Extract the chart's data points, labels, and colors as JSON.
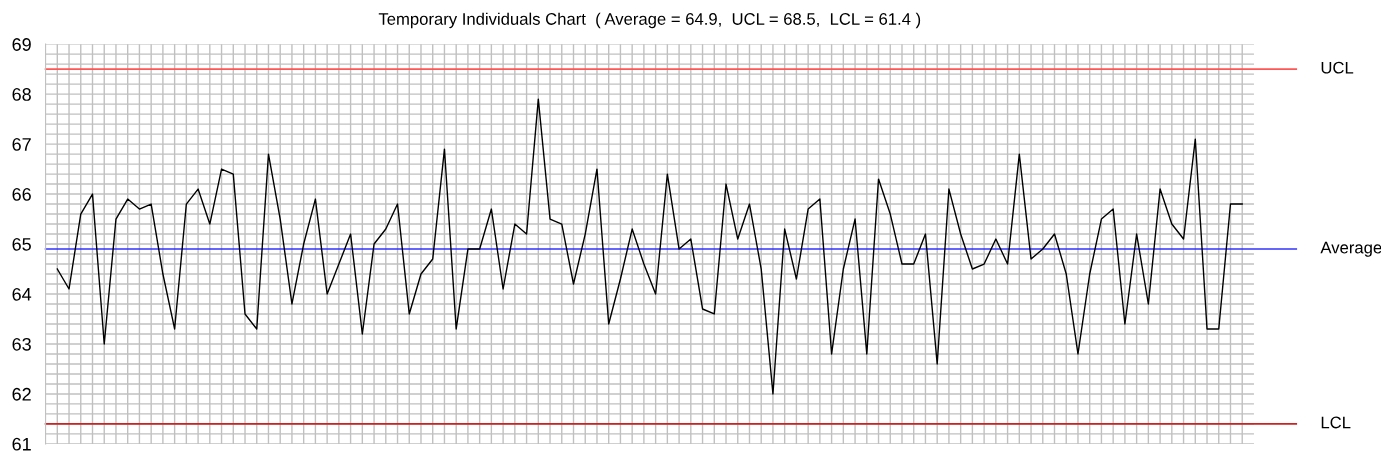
{
  "chart_data": {
    "type": "line",
    "title": "Temporary Individuals Chart  ( Average = 64.9,  UCL = 68.5,  LCL = 61.4 )",
    "categories": [
      null,
      null,
      null,
      null,
      null,
      null,
      null,
      null,
      null,
      null,
      null,
      null,
      null,
      null,
      null,
      null,
      null,
      null,
      null,
      null,
      null,
      null,
      null,
      null,
      null,
      null,
      null,
      null,
      null,
      null,
      null,
      null,
      null,
      null,
      null,
      null,
      null,
      null,
      null,
      null,
      null,
      null,
      null,
      null,
      null,
      null,
      null,
      null,
      null,
      null,
      null,
      null,
      null,
      null,
      null,
      null,
      null,
      null,
      null,
      null,
      null,
      null,
      null,
      null,
      null,
      null,
      null,
      null,
      null,
      null,
      null,
      null,
      null,
      null,
      null,
      null,
      null,
      null,
      null,
      null,
      null,
      null,
      null,
      null,
      null,
      null,
      null,
      null,
      null,
      null,
      null,
      null,
      null,
      null,
      null,
      null,
      null,
      null,
      null,
      null,
      null,
      null
    ],
    "series": [
      {
        "color": "#000000",
        "values": [
          64.5,
          64.1,
          65.6,
          66.0,
          63.0,
          65.5,
          65.9,
          65.7,
          65.8,
          64.4,
          63.3,
          65.8,
          66.1,
          65.4,
          66.5,
          66.4,
          63.6,
          63.3,
          66.8,
          65.5,
          63.8,
          65.0,
          65.9,
          64.0,
          64.6,
          65.2,
          63.2,
          65.0,
          65.3,
          65.8,
          63.6,
          64.4,
          64.7,
          66.9,
          63.3,
          64.9,
          64.9,
          65.7,
          64.1,
          65.4,
          65.2,
          67.9,
          65.5,
          65.4,
          64.2,
          65.2,
          66.5,
          63.4,
          64.3,
          65.3,
          64.6,
          64.0,
          66.4,
          64.9,
          65.1,
          63.7,
          63.6,
          66.2,
          65.1,
          65.8,
          64.5,
          62.0,
          65.3,
          64.3,
          65.7,
          65.9,
          62.8,
          64.5,
          65.5,
          62.8,
          66.3,
          65.6,
          64.6,
          64.6,
          65.2,
          62.6,
          66.1,
          65.2,
          64.5,
          64.6,
          65.1,
          64.6,
          66.8,
          64.7,
          64.9,
          65.2,
          64.4,
          62.8,
          64.4,
          65.5,
          65.7,
          63.4,
          65.2,
          63.8,
          66.1,
          65.4,
          65.1,
          67.1,
          63.3,
          63.3,
          65.8,
          65.8
        ]
      }
    ],
    "ylim": [
      61,
      69
    ],
    "yticks": [
      61,
      62,
      63,
      64,
      65,
      66,
      67,
      68,
      69
    ],
    "ref_lines": [
      {
        "axis": "y",
        "value": 68.5,
        "label": "UCL",
        "color": "#ff5555"
      },
      {
        "axis": "y",
        "value": 64.9,
        "label": "Average",
        "color": "#3333ff"
      },
      {
        "axis": "y",
        "value": 61.4,
        "label": "LCL",
        "color": "#cc2222"
      }
    ],
    "grid": true,
    "marker": "none",
    "line_style": "solid",
    "tick_labels": "y"
  }
}
